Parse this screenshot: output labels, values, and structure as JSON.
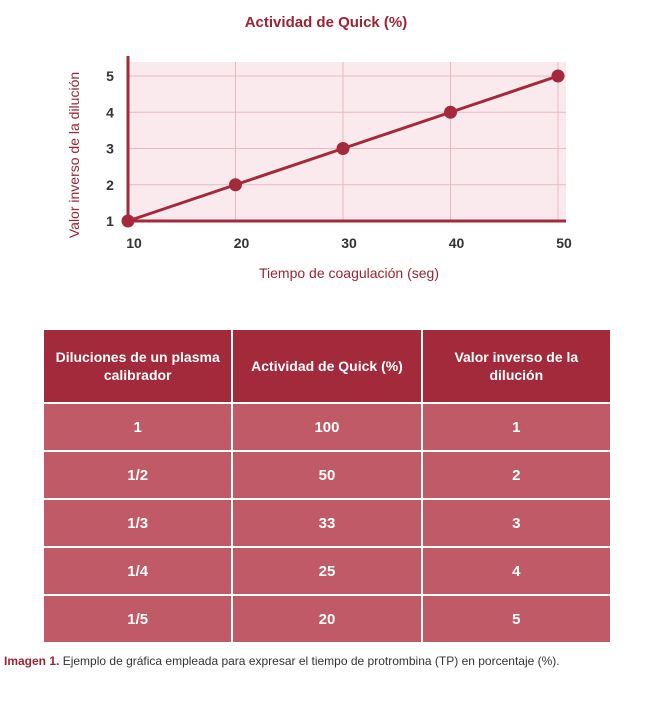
{
  "chart_data": {
    "type": "line",
    "title": "Actividad de Quick (%)",
    "xlabel": "Tiempo de coagulación (seg)",
    "ylabel": "Valor inverso de la dilución",
    "x": [
      10,
      20,
      30,
      40,
      50
    ],
    "y": [
      1,
      2,
      3,
      4,
      5
    ],
    "xticks": [
      "10",
      "20",
      "30",
      "40",
      "50"
    ],
    "yticks": [
      "1",
      "2",
      "3",
      "4",
      "5"
    ],
    "xlim": [
      10,
      50
    ],
    "ylim": [
      1,
      5
    ],
    "grid": true,
    "colors": {
      "line": "#a32a3b",
      "plot_bg": "#fbeaed",
      "grid": "#e7b9c1"
    }
  },
  "table": {
    "headers": [
      "Diluciones de un plasma calibrador",
      "Actividad de Quick (%)",
      "Valor inverso de la dilución"
    ],
    "rows": [
      [
        "1",
        "100",
        "1"
      ],
      [
        "1/2",
        "50",
        "2"
      ],
      [
        "1/3",
        "33",
        "3"
      ],
      [
        "1/4",
        "25",
        "4"
      ],
      [
        "1/5",
        "20",
        "5"
      ]
    ],
    "colors": {
      "header_bg": "#a32a3b",
      "cell_bg": "#bf5a66"
    }
  },
  "caption": {
    "label": "Imagen 1.",
    "text": "Ejemplo de gráfica empleada para expresar el tiempo de protrombina (TP) en porcentaje (%)."
  }
}
